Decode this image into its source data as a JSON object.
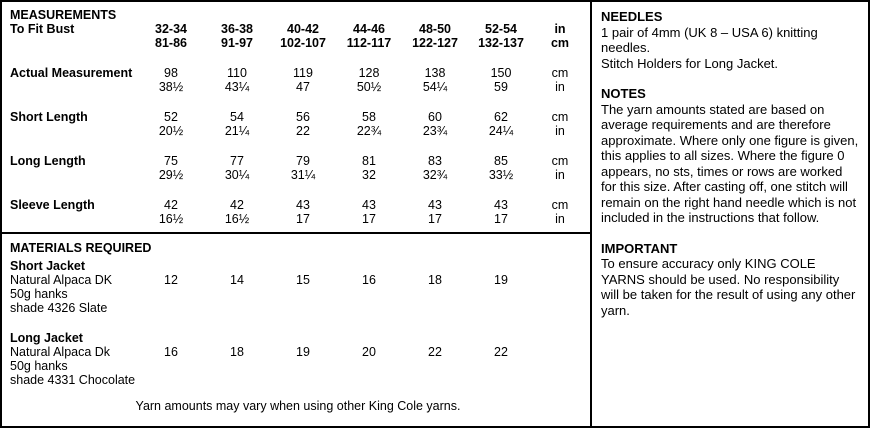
{
  "measurements": {
    "title": "MEASUREMENTS",
    "header": {
      "label": "To Fit Bust",
      "sizes_in": [
        "32-34",
        "36-38",
        "40-42",
        "44-46",
        "48-50",
        "52-54"
      ],
      "sizes_cm": [
        "81-86",
        "91-97",
        "102-107",
        "112-117",
        "122-127",
        "132-137"
      ],
      "units": [
        "in",
        "cm"
      ]
    },
    "row_units": [
      "cm",
      "in"
    ],
    "rows": [
      {
        "label": "Actual Measurement",
        "cm": [
          "98",
          "110",
          "119",
          "128",
          "138",
          "150"
        ],
        "in": [
          "38½",
          "43¼",
          "47",
          "50½",
          "54¼",
          "59"
        ]
      },
      {
        "label": "Short Length",
        "cm": [
          "52",
          "54",
          "56",
          "58",
          "60",
          "62"
        ],
        "in": [
          "20½",
          "21¼",
          "22",
          "22¾",
          "23¾",
          "24¼"
        ]
      },
      {
        "label": "Long Length",
        "cm": [
          "75",
          "77",
          "79",
          "81",
          "83",
          "85"
        ],
        "in": [
          "29½",
          "30¼",
          "31¼",
          "32",
          "32¾",
          "33½"
        ]
      },
      {
        "label": "Sleeve Length",
        "cm": [
          "42",
          "42",
          "43",
          "43",
          "43",
          "43"
        ],
        "in": [
          "16½",
          "16½",
          "17",
          "17",
          "17",
          "17"
        ]
      }
    ]
  },
  "materials": {
    "title": "MATERIALS REQUIRED",
    "items": [
      {
        "name": "Short Jacket",
        "yarn": "Natural Alpaca DK",
        "pack": "50g hanks",
        "shade": "shade 4326 Slate",
        "values": [
          "12",
          "14",
          "15",
          "16",
          "18",
          "19"
        ]
      },
      {
        "name": "Long Jacket",
        "yarn": "Natural Alpaca Dk",
        "pack": "50g hanks",
        "shade": "shade 4331 Chocolate",
        "values": [
          "16",
          "18",
          "19",
          "20",
          "22",
          "22"
        ]
      }
    ],
    "footnote": "Yarn amounts may vary when using other King Cole yarns."
  },
  "sidebar": {
    "needles_title": "NEEDLES",
    "needles_line1": "1 pair of 4mm (UK 8 – USA 6) knitting needles.",
    "needles_line2": "Stitch Holders for Long Jacket.",
    "notes_title": "NOTES",
    "notes_text": "The yarn amounts stated are based on average requirements and are therefore approximate. Where only one figure is given, this applies to all sizes. Where the figure 0 appears, no sts, times or rows are worked for this size. After casting off, one stitch will remain on the right hand needle which is not included in the instructions that follow.",
    "important_title": "IMPORTANT",
    "important_text": "To ensure accuracy only KING COLE YARNS should be used. No responsibility will be taken for the result of using any other yarn."
  }
}
